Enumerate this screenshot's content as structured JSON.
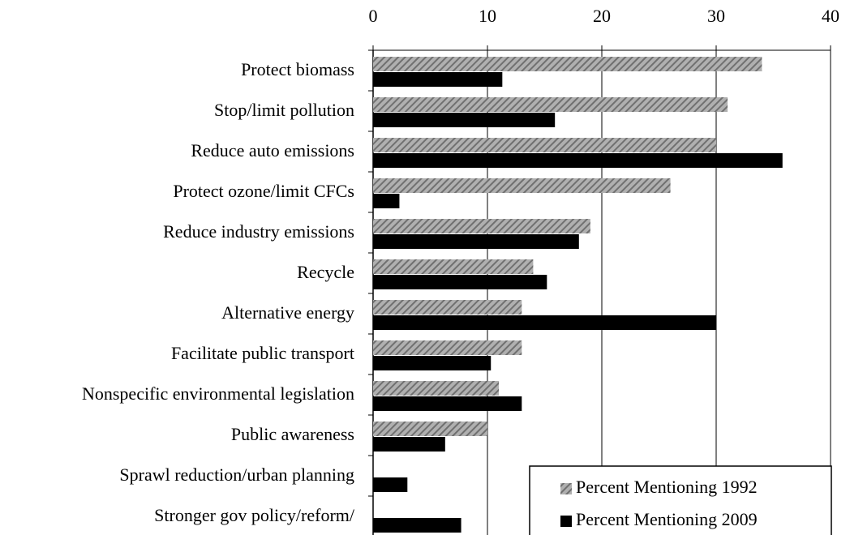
{
  "chart_data": {
    "type": "barh",
    "categories": [
      "Protect biomass",
      "Stop/limit pollution",
      "Reduce auto emissions",
      "Protect ozone/limit CFCs",
      "Reduce industry emissions",
      "Recycle",
      "Alternative energy",
      "Facilitate public transport",
      "Nonspecific environmental legislation",
      "Public awareness",
      "Sprawl reduction/urban planning",
      "Stronger gov policy/reform/"
    ],
    "series": [
      {
        "name": "Percent Mentioning 1992",
        "color": "#808080",
        "hatch": true,
        "values": [
          34,
          31,
          30,
          26,
          19,
          14,
          13,
          13,
          11,
          10,
          0,
          0
        ]
      },
      {
        "name": "Percent Mentioning 2009",
        "color": "#000000",
        "hatch": false,
        "values": [
          11.3,
          15.9,
          35.8,
          2.3,
          18,
          15.2,
          30,
          10.3,
          13,
          6.3,
          3,
          7.7
        ]
      }
    ],
    "xlim": [
      0,
      40
    ],
    "xticks": [
      0,
      10,
      20,
      30,
      40
    ],
    "grid": true,
    "legend": "lower right"
  }
}
